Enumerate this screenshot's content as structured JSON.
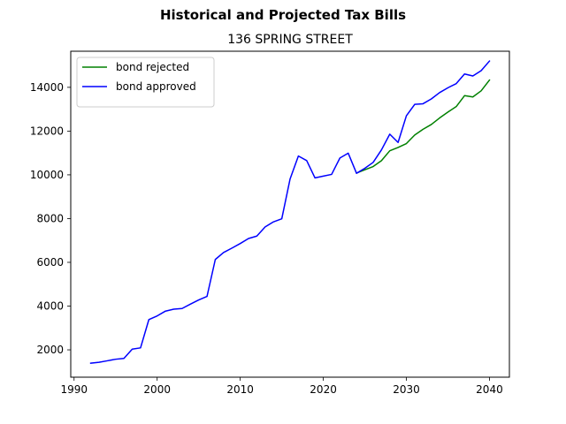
{
  "chart_data": {
    "type": "line",
    "title": "Historical and Projected Tax Bills",
    "subtitle": "136 SPRING STREET",
    "xlabel": "",
    "ylabel": "",
    "xlim": [
      1989.6,
      2042.4
    ],
    "ylim": [
      750,
      15650
    ],
    "x_ticks": [
      1990,
      2000,
      2010,
      2020,
      2030,
      2040
    ],
    "y_ticks": [
      2000,
      4000,
      6000,
      8000,
      10000,
      12000,
      14000
    ],
    "grid": false,
    "legend_position": "upper-left",
    "series": [
      {
        "name": "bond rejected",
        "color": "#008000",
        "x": [
          2024,
          2025,
          2026,
          2027,
          2028,
          2029,
          2030,
          2031,
          2032,
          2033,
          2034,
          2035,
          2036,
          2037,
          2038,
          2039,
          2040
        ],
        "y": [
          10080,
          10230,
          10380,
          10650,
          11100,
          11250,
          11430,
          11820,
          12080,
          12300,
          12600,
          12870,
          13120,
          13620,
          13560,
          13840,
          14330
        ]
      },
      {
        "name": "bond approved",
        "color": "#0000ff",
        "x": [
          1992,
          1993,
          1994,
          1995,
          1996,
          1997,
          1998,
          1999,
          2000,
          2001,
          2002,
          2003,
          2004,
          2005,
          2006,
          2007,
          2008,
          2009,
          2010,
          2011,
          2012,
          2013,
          2014,
          2015,
          2016,
          2017,
          2018,
          2019,
          2020,
          2021,
          2022,
          2023,
          2024,
          2025,
          2026,
          2027,
          2028,
          2029,
          2030,
          2031,
          2032,
          2033,
          2034,
          2035,
          2036,
          2037,
          2038,
          2039,
          2040
        ],
        "y": [
          1390,
          1430,
          1500,
          1570,
          1610,
          2030,
          2090,
          3380,
          3550,
          3770,
          3860,
          3890,
          4090,
          4280,
          4440,
          6130,
          6450,
          6650,
          6860,
          7090,
          7200,
          7620,
          7850,
          7990,
          9810,
          10860,
          10650,
          9860,
          9940,
          10020,
          10770,
          10990,
          10070,
          10300,
          10570,
          11140,
          11860,
          11480,
          12700,
          13220,
          13250,
          13470,
          13760,
          13980,
          14170,
          14610,
          14520,
          14760,
          15200
        ]
      }
    ]
  }
}
